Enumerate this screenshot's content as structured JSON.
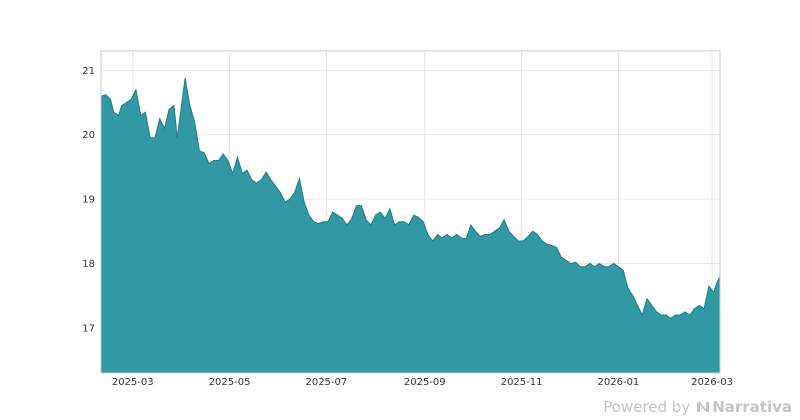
{
  "chart_data": {
    "type": "area",
    "title": "",
    "xlabel": "",
    "ylabel": "",
    "x_range": [
      "2025-02-09",
      "2026-03-06"
    ],
    "ylim": [
      16.3,
      21.3
    ],
    "y_ticks": [
      17,
      18,
      19,
      20,
      21
    ],
    "x_ticks": [
      "2025-03",
      "2025-05",
      "2025-07",
      "2025-09",
      "2025-11",
      "2026-01",
      "2026-03"
    ],
    "grid": true,
    "legend": "none",
    "fill_color": "#3299a4",
    "line_color": "#1e7f89",
    "series": [
      {
        "points": [
          [
            "2025-02-09",
            20.6
          ],
          [
            "2025-02-12",
            20.62
          ],
          [
            "2025-02-15",
            20.55
          ],
          [
            "2025-02-17",
            20.35
          ],
          [
            "2025-02-20",
            20.3
          ],
          [
            "2025-02-22",
            20.45
          ],
          [
            "2025-02-25",
            20.5
          ],
          [
            "2025-02-28",
            20.55
          ],
          [
            "2025-03-03",
            20.7
          ],
          [
            "2025-03-06",
            20.3
          ],
          [
            "2025-03-09",
            20.35
          ],
          [
            "2025-03-12",
            19.95
          ],
          [
            "2025-03-15",
            19.95
          ],
          [
            "2025-03-18",
            20.25
          ],
          [
            "2025-03-21",
            20.1
          ],
          [
            "2025-03-24",
            20.4
          ],
          [
            "2025-03-27",
            20.45
          ],
          [
            "2025-03-29",
            19.95
          ],
          [
            "2025-04-01",
            20.5
          ],
          [
            "2025-04-03",
            20.88
          ],
          [
            "2025-04-06",
            20.45
          ],
          [
            "2025-04-09",
            20.2
          ],
          [
            "2025-04-12",
            19.75
          ],
          [
            "2025-04-15",
            19.72
          ],
          [
            "2025-04-18",
            19.55
          ],
          [
            "2025-04-21",
            19.6
          ],
          [
            "2025-04-24",
            19.6
          ],
          [
            "2025-04-27",
            19.7
          ],
          [
            "2025-04-30",
            19.6
          ],
          [
            "2025-05-03",
            19.4
          ],
          [
            "2025-05-06",
            19.65
          ],
          [
            "2025-05-09",
            19.4
          ],
          [
            "2025-05-12",
            19.45
          ],
          [
            "2025-05-15",
            19.3
          ],
          [
            "2025-05-18",
            19.25
          ],
          [
            "2025-05-21",
            19.3
          ],
          [
            "2025-05-24",
            19.42
          ],
          [
            "2025-05-27",
            19.3
          ],
          [
            "2025-05-30",
            19.2
          ],
          [
            "2025-06-02",
            19.1
          ],
          [
            "2025-06-05",
            18.95
          ],
          [
            "2025-06-08",
            19.0
          ],
          [
            "2025-06-11",
            19.1
          ],
          [
            "2025-06-14",
            19.32
          ],
          [
            "2025-06-17",
            18.95
          ],
          [
            "2025-06-20",
            18.75
          ],
          [
            "2025-06-23",
            18.65
          ],
          [
            "2025-06-26",
            18.62
          ],
          [
            "2025-06-29",
            18.65
          ],
          [
            "2025-07-02",
            18.65
          ],
          [
            "2025-07-05",
            18.8
          ],
          [
            "2025-07-08",
            18.75
          ],
          [
            "2025-07-11",
            18.7
          ],
          [
            "2025-07-14",
            18.6
          ],
          [
            "2025-07-17",
            18.7
          ],
          [
            "2025-07-20",
            18.9
          ],
          [
            "2025-07-23",
            18.9
          ],
          [
            "2025-07-26",
            18.68
          ],
          [
            "2025-07-29",
            18.6
          ],
          [
            "2025-08-01",
            18.75
          ],
          [
            "2025-08-04",
            18.8
          ],
          [
            "2025-08-07",
            18.7
          ],
          [
            "2025-08-10",
            18.85
          ],
          [
            "2025-08-13",
            18.6
          ],
          [
            "2025-08-16",
            18.65
          ],
          [
            "2025-08-19",
            18.65
          ],
          [
            "2025-08-22",
            18.6
          ],
          [
            "2025-08-25",
            18.75
          ],
          [
            "2025-08-28",
            18.72
          ],
          [
            "2025-08-31",
            18.65
          ],
          [
            "2025-09-03",
            18.45
          ],
          [
            "2025-09-06",
            18.35
          ],
          [
            "2025-09-09",
            18.45
          ],
          [
            "2025-09-12",
            18.4
          ],
          [
            "2025-09-15",
            18.45
          ],
          [
            "2025-09-18",
            18.4
          ],
          [
            "2025-09-21",
            18.45
          ],
          [
            "2025-09-24",
            18.4
          ],
          [
            "2025-09-27",
            18.38
          ],
          [
            "2025-09-30",
            18.6
          ],
          [
            "2025-10-03",
            18.5
          ],
          [
            "2025-10-06",
            18.42
          ],
          [
            "2025-10-09",
            18.45
          ],
          [
            "2025-10-12",
            18.45
          ],
          [
            "2025-10-15",
            18.5
          ],
          [
            "2025-10-18",
            18.55
          ],
          [
            "2025-10-21",
            18.68
          ],
          [
            "2025-10-24",
            18.5
          ],
          [
            "2025-10-27",
            18.42
          ],
          [
            "2025-10-30",
            18.35
          ],
          [
            "2025-11-02",
            18.35
          ],
          [
            "2025-11-05",
            18.42
          ],
          [
            "2025-11-08",
            18.5
          ],
          [
            "2025-11-11",
            18.45
          ],
          [
            "2025-11-14",
            18.35
          ],
          [
            "2025-11-17",
            18.3
          ],
          [
            "2025-11-20",
            18.28
          ],
          [
            "2025-11-23",
            18.25
          ],
          [
            "2025-11-26",
            18.1
          ],
          [
            "2025-11-29",
            18.05
          ],
          [
            "2025-12-02",
            18.0
          ],
          [
            "2025-12-05",
            18.02
          ],
          [
            "2025-12-08",
            17.95
          ],
          [
            "2025-12-11",
            17.95
          ],
          [
            "2025-12-14",
            18.0
          ],
          [
            "2025-12-17",
            17.95
          ],
          [
            "2025-12-20",
            18.0
          ],
          [
            "2025-12-23",
            17.95
          ],
          [
            "2025-12-26",
            17.95
          ],
          [
            "2025-12-29",
            18.0
          ],
          [
            "2026-01-01",
            17.95
          ],
          [
            "2026-01-04",
            17.9
          ],
          [
            "2026-01-07",
            17.62
          ],
          [
            "2026-01-10",
            17.5
          ],
          [
            "2026-01-13",
            17.35
          ],
          [
            "2026-01-16",
            17.2
          ],
          [
            "2026-01-19",
            17.45
          ],
          [
            "2026-01-22",
            17.35
          ],
          [
            "2026-01-25",
            17.25
          ],
          [
            "2026-01-28",
            17.2
          ],
          [
            "2026-01-31",
            17.2
          ],
          [
            "2026-02-03",
            17.15
          ],
          [
            "2026-02-06",
            17.2
          ],
          [
            "2026-02-09",
            17.2
          ],
          [
            "2026-02-12",
            17.25
          ],
          [
            "2026-02-15",
            17.2
          ],
          [
            "2026-02-18",
            17.3
          ],
          [
            "2026-02-21",
            17.35
          ],
          [
            "2026-02-24",
            17.3
          ],
          [
            "2026-02-27",
            17.65
          ],
          [
            "2026-03-02",
            17.55
          ],
          [
            "2026-03-04",
            17.7
          ],
          [
            "2026-03-06",
            17.8
          ]
        ]
      }
    ]
  },
  "watermark": {
    "prefix": "Powered by",
    "brand": "Narrativa",
    "logo_icon": "narrativa-logo-icon"
  }
}
